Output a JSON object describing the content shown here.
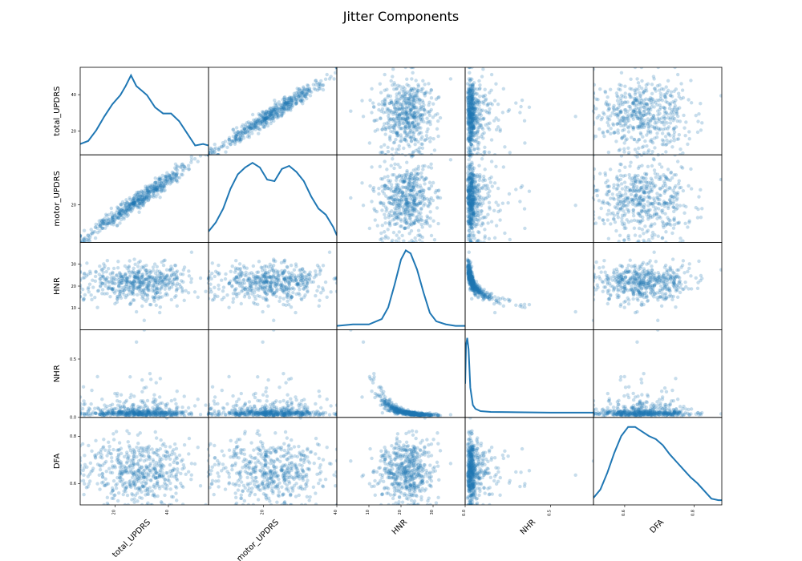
{
  "chart_data": {
    "type": "scatter",
    "title": "Jitter Components",
    "variables": [
      "total_UPDRS",
      "motor_UPDRS",
      "HNR",
      "NHR",
      "DFA"
    ],
    "ranges": {
      "total_UPDRS": [
        7,
        55
      ],
      "motor_UPDRS": [
        5,
        40
      ],
      "HNR": [
        0,
        40
      ],
      "NHR": [
        0,
        0.75
      ],
      "DFA": [
        0.51,
        0.88
      ]
    },
    "ticks": {
      "total_UPDRS": [
        "20",
        "40"
      ],
      "motor_UPDRS": [
        "20",
        "40"
      ],
      "HNR": [
        "10",
        "20",
        "30"
      ],
      "NHR": [
        "0.0",
        "0.5"
      ],
      "DFA": [
        "0.6",
        "0.8"
      ]
    },
    "y_ticks": {
      "total_UPDRS": [
        "20",
        "40"
      ],
      "motor_UPDRS": [
        "20"
      ],
      "HNR": [
        "10",
        "20",
        "30"
      ],
      "NHR": [
        "0.0",
        "0.5"
      ],
      "DFA": [
        "0.6",
        "0.8"
      ]
    },
    "diagonal": "kde",
    "kde": {
      "total_UPDRS": {
        "x": [
          7,
          10,
          13,
          16,
          19,
          22,
          24,
          26,
          28,
          30,
          32,
          35,
          38,
          41,
          44,
          47,
          50,
          53,
          55
        ],
        "density": [
          0.1,
          0.14,
          0.28,
          0.46,
          0.62,
          0.74,
          0.86,
          1.0,
          0.86,
          0.8,
          0.74,
          0.58,
          0.5,
          0.5,
          0.4,
          0.24,
          0.08,
          0.1,
          0.08
        ]
      },
      "motor_UPDRS": {
        "x": [
          5,
          7,
          9,
          11,
          13,
          15,
          17,
          19,
          21,
          23,
          25,
          27,
          29,
          31,
          33,
          35,
          37,
          39,
          40
        ],
        "density": [
          0.1,
          0.22,
          0.4,
          0.66,
          0.85,
          0.94,
          1.0,
          0.94,
          0.78,
          0.76,
          0.92,
          0.96,
          0.88,
          0.76,
          0.56,
          0.4,
          0.32,
          0.16,
          0.05
        ]
      },
      "HNR": {
        "x": [
          0,
          5,
          10,
          14,
          16,
          18,
          20,
          21.5,
          23,
          25,
          27,
          29,
          31,
          34,
          37,
          40
        ],
        "density": [
          0.01,
          0.03,
          0.03,
          0.1,
          0.25,
          0.55,
          0.88,
          1.0,
          0.96,
          0.75,
          0.45,
          0.18,
          0.07,
          0.03,
          0.01,
          0.01
        ]
      },
      "NHR": {
        "x": [
          0.0,
          0.005,
          0.012,
          0.02,
          0.03,
          0.045,
          0.06,
          0.09,
          0.15,
          0.3,
          0.5,
          0.75
        ],
        "density": [
          0.4,
          0.9,
          1.0,
          0.85,
          0.35,
          0.12,
          0.07,
          0.04,
          0.03,
          0.025,
          0.02,
          0.02
        ]
      },
      "DFA": {
        "x": [
          0.51,
          0.53,
          0.55,
          0.57,
          0.59,
          0.61,
          0.63,
          0.65,
          0.67,
          0.69,
          0.71,
          0.73,
          0.75,
          0.77,
          0.79,
          0.81,
          0.83,
          0.85,
          0.87,
          0.88
        ],
        "density": [
          0.05,
          0.16,
          0.38,
          0.64,
          0.86,
          0.98,
          0.98,
          0.92,
          0.86,
          0.82,
          0.74,
          0.62,
          0.52,
          0.42,
          0.32,
          0.24,
          0.14,
          0.04,
          0.02,
          0.02
        ]
      }
    },
    "marker": {
      "color": "#1f77b4",
      "alpha": 0.25
    },
    "grid": false,
    "legend": "none"
  }
}
